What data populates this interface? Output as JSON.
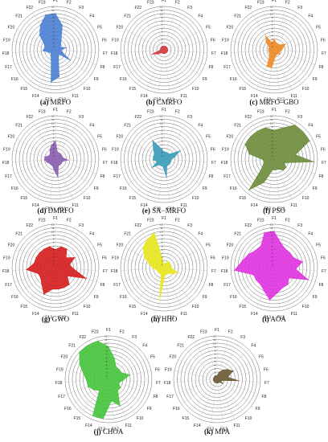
{
  "feature_labels": [
    "F1",
    "F2",
    "F3",
    "F4",
    "F5",
    "F6",
    "F7",
    "F8",
    "F9",
    "F10",
    "F11",
    "F12",
    "F13",
    "F14",
    "F15",
    "F16",
    "F17",
    "F18",
    "F19",
    "F20",
    "F21",
    "F22",
    "F23"
  ],
  "ring_labels": [
    "1",
    "2",
    "3",
    "4",
    "5",
    "6",
    "7",
    "8",
    "9",
    "10",
    "11",
    "12"
  ],
  "chart_data": [
    {
      "type": "radar",
      "letter": "(a)",
      "name": "MRFO",
      "color": "#4a7fd4",
      "categories": [
        "F1",
        "F2",
        "F3",
        "F4",
        "F5",
        "F6",
        "F7",
        "F8",
        "F9",
        "F10",
        "F11",
        "F12",
        "F13",
        "F14",
        "F15",
        "F16",
        "F17",
        "F18",
        "F19",
        "F20",
        "F21",
        "F22",
        "F23"
      ],
      "values": [
        10,
        7,
        3,
        2,
        1.5,
        3,
        1.5,
        2,
        5,
        1.5,
        2,
        7.5,
        9,
        3,
        2,
        1.5,
        2,
        3.5,
        3,
        3.5,
        6,
        8,
        10
      ],
      "rmax": 12
    },
    {
      "type": "radar",
      "letter": "(b)",
      "name": "CMRFO",
      "color": "#d43a3a",
      "categories": [
        "F1",
        "F2",
        "F3",
        "F4",
        "F5",
        "F6",
        "F7",
        "F8",
        "F9",
        "F10",
        "F11",
        "F12",
        "F13",
        "F14",
        "F15",
        "F16",
        "F17",
        "F18",
        "F19",
        "F20",
        "F21",
        "F22",
        "F23"
      ],
      "values": [
        1,
        1,
        1,
        1,
        1,
        1,
        1,
        1,
        1,
        1,
        1,
        1,
        1,
        1,
        1,
        2,
        3.5,
        1,
        1,
        1,
        1,
        1,
        1
      ],
      "rmax": 12
    },
    {
      "type": "radar",
      "letter": "(c)",
      "name": "MRFO–GBO",
      "color": "#f08a24",
      "categories": [
        "F1",
        "F2",
        "F3",
        "F4",
        "F5",
        "F6",
        "F7",
        "F8",
        "F9",
        "F10",
        "F11",
        "F12",
        "F13",
        "F14",
        "F15",
        "F16",
        "F17",
        "F18",
        "F19",
        "F20",
        "F21",
        "F22",
        "F23"
      ],
      "values": [
        3,
        2,
        2,
        2,
        3.5,
        2.5,
        2,
        1.5,
        2,
        1.5,
        1.5,
        2,
        5,
        5,
        2,
        1.5,
        1.5,
        1.5,
        1.5,
        1.5,
        3,
        4.5,
        2
      ],
      "rmax": 12
    },
    {
      "type": "radar",
      "letter": "(d)",
      "name": "DMRFO",
      "color": "#8a5cb0",
      "categories": [
        "F1",
        "F2",
        "F3",
        "F4",
        "F5",
        "F6",
        "F7",
        "F8",
        "F9",
        "F10",
        "F11",
        "F12",
        "F13",
        "F14",
        "F15",
        "F16",
        "F17",
        "F18",
        "F19",
        "F20",
        "F21",
        "F22",
        "F23"
      ],
      "values": [
        5,
        2,
        2,
        2,
        2,
        2,
        3.5,
        2,
        2,
        2,
        2,
        5,
        3,
        2,
        2,
        2,
        2.5,
        3,
        3,
        2,
        2,
        3,
        4
      ],
      "rmax": 12
    },
    {
      "type": "radar",
      "letter": "(e)",
      "name": "SA−MRFO",
      "color": "#3a9cb8",
      "categories": [
        "F1",
        "F2",
        "F3",
        "F4",
        "F5",
        "F6",
        "F7",
        "F8",
        "F9",
        "F10",
        "F11",
        "F12",
        "F13",
        "F14",
        "F15",
        "F16",
        "F17",
        "F18",
        "F19",
        "F20",
        "F21",
        "F22",
        "F23"
      ],
      "values": [
        2,
        2,
        2,
        2,
        5,
        3,
        2,
        2,
        2,
        2,
        2,
        5,
        2,
        2,
        2,
        4,
        2,
        3,
        3,
        3,
        4,
        6,
        3
      ],
      "rmax": 12
    },
    {
      "type": "radar",
      "letter": "(f)",
      "name": "PSO",
      "color": "#6b8c3a",
      "categories": [
        "F1",
        "F2",
        "F3",
        "F4",
        "F5",
        "F6",
        "F7",
        "F8",
        "F9",
        "F10",
        "F11",
        "F12",
        "F13",
        "F14",
        "F15",
        "F16",
        "F17",
        "F18",
        "F19",
        "F20",
        "F21",
        "F22",
        "F23"
      ],
      "values": [
        8,
        9,
        11,
        11,
        11,
        6,
        11,
        3,
        4,
        4,
        3,
        3,
        3,
        7,
        11,
        4,
        3,
        3,
        7,
        9,
        9,
        9,
        9
      ],
      "rmax": 12
    },
    {
      "type": "radar",
      "letter": "(g)",
      "name": "GWO",
      "color": "#d41c1c",
      "categories": [
        "F1",
        "F2",
        "F3",
        "F4",
        "F5",
        "F6",
        "F7",
        "F8",
        "F9",
        "F10",
        "F11",
        "F12",
        "F13",
        "F14",
        "F15",
        "F16",
        "F17",
        "F18",
        "F19",
        "F20",
        "F21",
        "F22",
        "F23"
      ],
      "values": [
        5,
        6,
        6,
        4,
        6,
        4,
        5,
        9,
        4,
        6,
        6,
        6,
        6,
        8,
        6,
        5,
        5,
        8,
        6,
        6,
        6,
        6,
        6
      ],
      "rmax": 12
    },
    {
      "type": "radar",
      "letter": "(h)",
      "name": "HHO",
      "color": "#e8e81c",
      "categories": [
        "F1",
        "F2",
        "F3",
        "F4",
        "F5",
        "F6",
        "F7",
        "F8",
        "F9",
        "F10",
        "F11",
        "F12",
        "F13",
        "F14",
        "F15",
        "F16",
        "F17",
        "F18",
        "F19",
        "F20",
        "F21",
        "F22",
        "F23"
      ],
      "values": [
        1,
        1,
        2,
        2,
        2,
        2,
        2,
        4,
        3,
        2,
        2,
        2,
        9,
        2,
        2,
        2,
        2,
        3,
        4,
        6,
        8,
        9,
        10
      ],
      "rmax": 12
    },
    {
      "type": "radar",
      "letter": "(i)",
      "name": "AOA",
      "color": "#e033e0",
      "categories": [
        "F1",
        "F2",
        "F3",
        "F4",
        "F5",
        "F6",
        "F7",
        "F8",
        "F9",
        "F10",
        "F11",
        "F12",
        "F13",
        "F14",
        "F15",
        "F16",
        "F17",
        "F18",
        "F19",
        "F20",
        "F21",
        "F22",
        "F23"
      ],
      "values": [
        10,
        7,
        6,
        6,
        6,
        8,
        6,
        10,
        5,
        6,
        6,
        7,
        9,
        7,
        6,
        6,
        6,
        11,
        9,
        8,
        7,
        7,
        10
      ],
      "rmax": 12
    },
    {
      "type": "radar",
      "letter": "(j)",
      "name": "CHOA",
      "color": "#45c43a",
      "categories": [
        "F1",
        "F2",
        "F3",
        "F4",
        "F5",
        "F6",
        "F7",
        "F8",
        "F9",
        "F10",
        "F11",
        "F12",
        "F13",
        "F14",
        "F15",
        "F16",
        "F17",
        "F18",
        "F19",
        "F20",
        "F21",
        "F22",
        "F23"
      ],
      "values": [
        9,
        6,
        4,
        4,
        4,
        6,
        4,
        3,
        4,
        4,
        8,
        6,
        11,
        11,
        4,
        5,
        6,
        6,
        7,
        9,
        11,
        11,
        11
      ],
      "rmax": 12
    },
    {
      "type": "radar",
      "letter": "(k)",
      "name": "MPA",
      "color": "#6b5a34",
      "categories": [
        "F1",
        "F2",
        "F3",
        "F4",
        "F5",
        "F6",
        "F7",
        "F8",
        "F9",
        "F10",
        "F11",
        "F12",
        "F13",
        "F14",
        "F15",
        "F16",
        "F17",
        "F18",
        "F19",
        "F20",
        "F21",
        "F22",
        "F23"
      ],
      "values": [
        1,
        2,
        3,
        4,
        5,
        3,
        6,
        1,
        2,
        1,
        1,
        1,
        1,
        1,
        1,
        1,
        1,
        1,
        1,
        1,
        1,
        1,
        1
      ],
      "rmax": 12
    }
  ]
}
